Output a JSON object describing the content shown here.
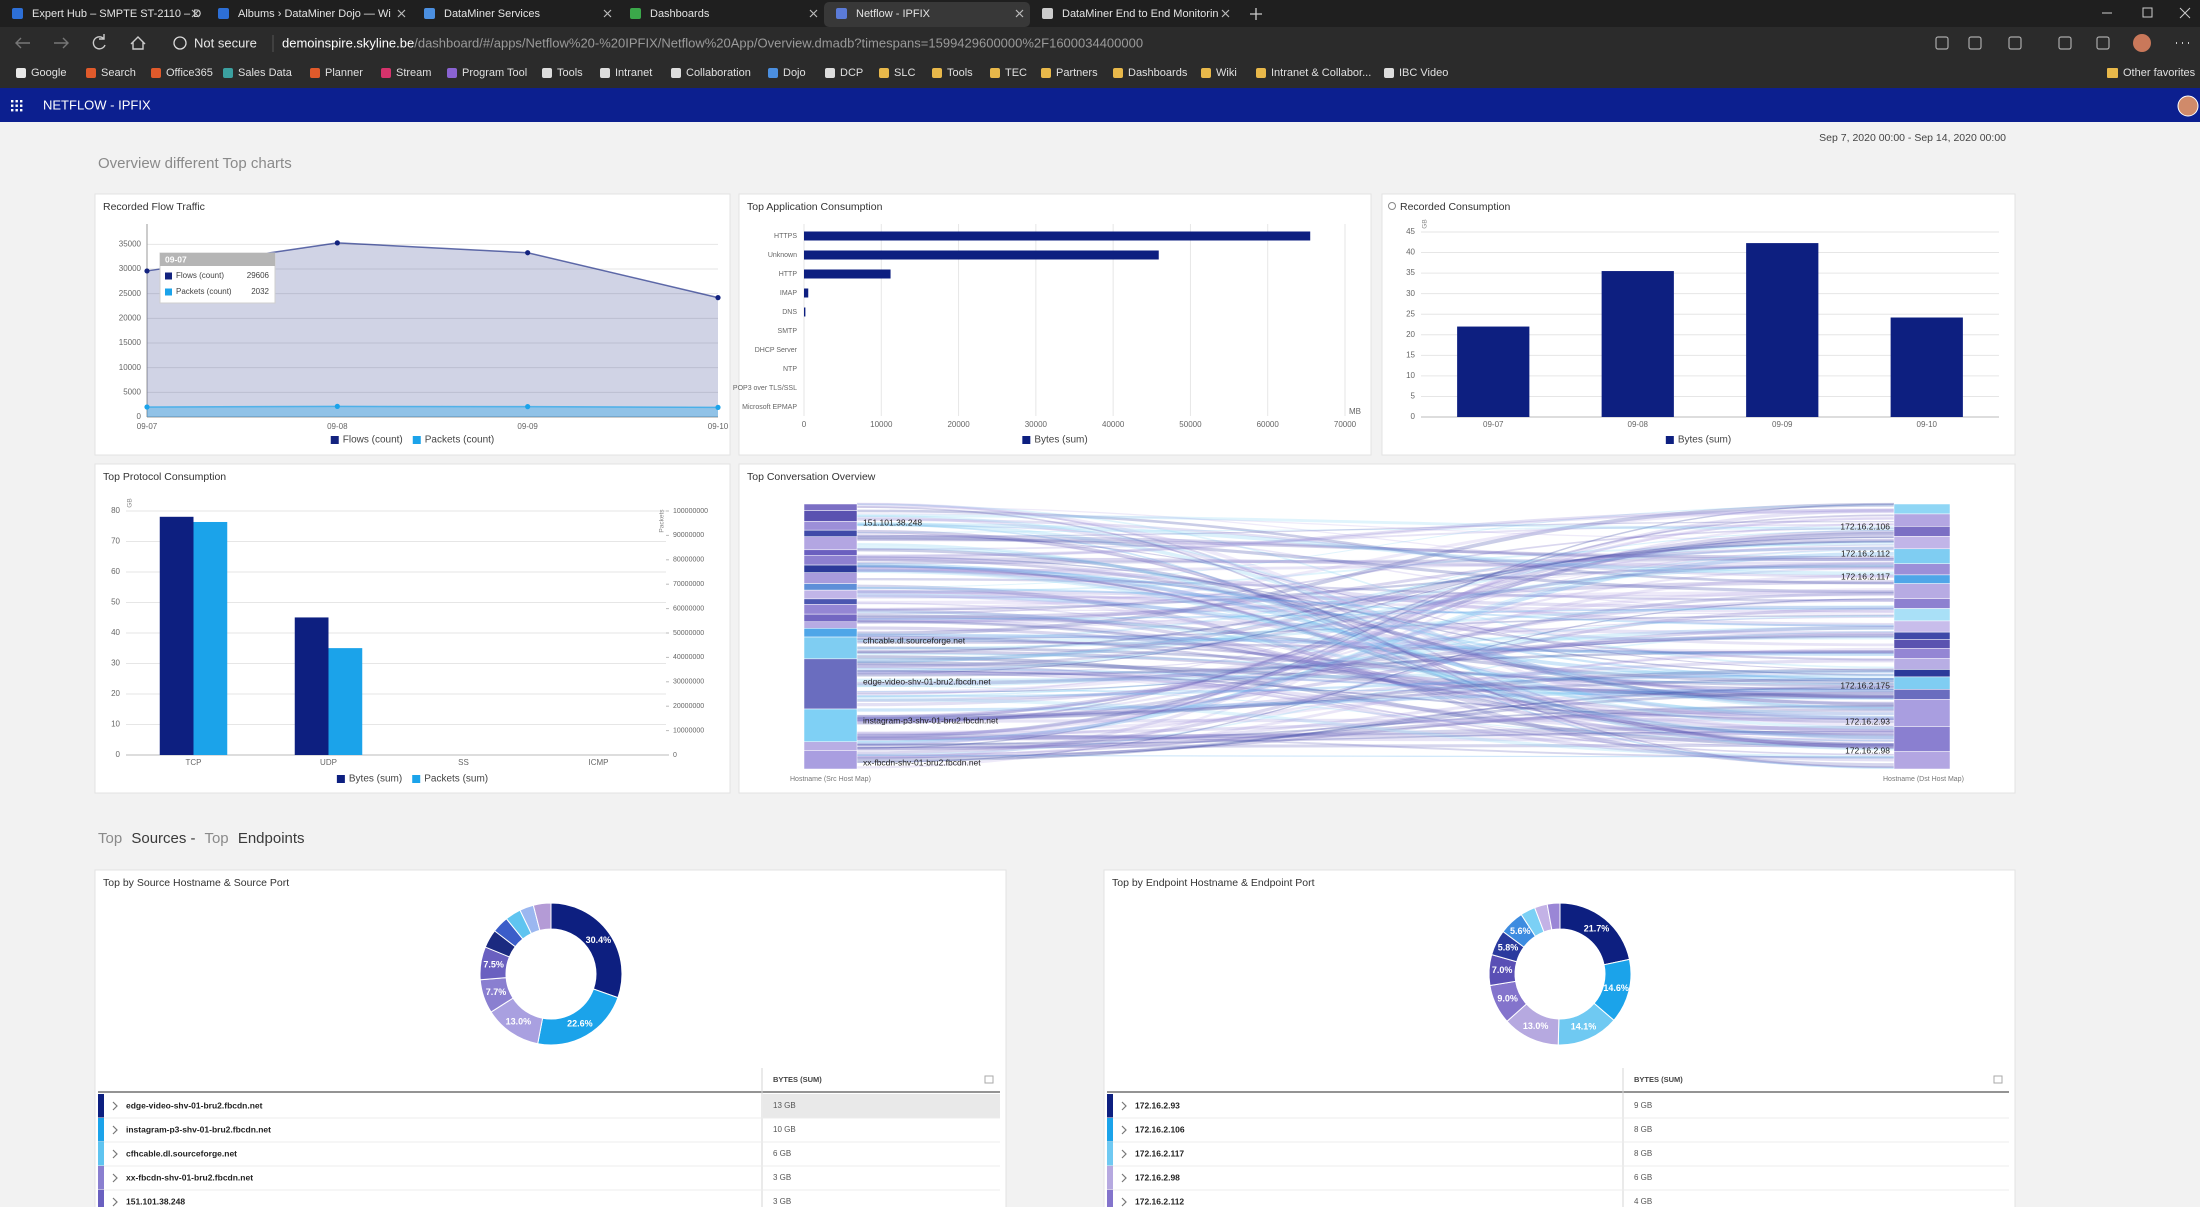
{
  "browser": {
    "tabs": [
      "Expert Hub – SMPTE ST-2110 – D",
      "Albums › DataMiner Dojo — Wi",
      "DataMiner Services",
      "Dashboards",
      "Netflow - IPFIX",
      "DataMiner End to End Monitorin"
    ],
    "active_tab": 4,
    "security": "Not secure",
    "url_host": "demoinspire.skyline.be",
    "url_path": "/dashboard/#/apps/Netflow%20-%20IPFIX/Netflow%20App/Overview.dmadb?timespans=1599429600000%2F1600034400000",
    "bookmarks": [
      "Google",
      "Search",
      "Office365",
      "Sales Data",
      "Planner",
      "Stream",
      "Program Tool",
      "Tools",
      "Intranet",
      "Collaboration",
      "Dojo",
      "DCP",
      "SLC",
      "Tools",
      "TEC",
      "Partners",
      "Dashboards",
      "Wiki",
      "Intranet & Collabor...",
      "IBC Video"
    ],
    "other_favorites": "Other favorites"
  },
  "app": {
    "title": "NETFLOW - IPFIX",
    "timespan": "Sep 7, 2020 00:00 - Sep 14, 2020 00:00",
    "section_1": "Overview different Top charts",
    "section_2": [
      "Top",
      "Sources -",
      "Top",
      "Endpoints"
    ]
  },
  "chart_data": [
    {
      "type": "area",
      "title": "Recorded Flow Traffic",
      "categories": [
        "09-07",
        "09-08",
        "09-09",
        "09-10"
      ],
      "series": [
        {
          "name": "Flows (count)",
          "color": "#13237f",
          "values": [
            29606,
            35300,
            33300,
            24200
          ]
        },
        {
          "name": "Packets (count)",
          "color": "#1ba3ea",
          "values": [
            2032,
            2150,
            2100,
            1950
          ]
        }
      ],
      "ylim": [
        0,
        37500
      ],
      "yticks": [
        0,
        5000,
        10000,
        15000,
        20000,
        25000,
        30000,
        35000
      ],
      "grid": true
    },
    {
      "type": "hbar",
      "title": "Top Application Consumption",
      "categories": [
        "HTTPS",
        "Unknown",
        "HTTP",
        "IMAP",
        "DNS",
        "SMTP",
        "DHCP Server",
        "NTP",
        "POP3 over TLS/SSL",
        "Microsoft EPMAP"
      ],
      "series": [
        {
          "name": "Bytes (sum)",
          "color": "#0d1f80",
          "values": [
            65500,
            45900,
            11200,
            550,
            180,
            0,
            0,
            0,
            0,
            0
          ]
        }
      ],
      "xlim": [
        0,
        70000
      ],
      "xticks": [
        0,
        10000,
        20000,
        30000,
        40000,
        50000,
        60000,
        70000
      ],
      "xlabel": "MB",
      "grid": true
    },
    {
      "type": "bar",
      "title": "Recorded Consumption",
      "categories": [
        "09-07",
        "09-08",
        "09-09",
        "09-10"
      ],
      "series": [
        {
          "name": "Bytes (sum)",
          "color": "#0d1f80",
          "values": [
            22,
            35.5,
            42.3,
            24.2
          ]
        }
      ],
      "ylim": [
        0,
        45
      ],
      "yticks": [
        0,
        5,
        10,
        15,
        20,
        25,
        30,
        35,
        40,
        45
      ],
      "ylabel": "GB",
      "grid": true
    },
    {
      "type": "bar",
      "title": "Top Protocol Consumption",
      "categories": [
        "TCP",
        "UDP",
        "SS",
        "ICMP"
      ],
      "series": [
        {
          "name": "Bytes (sum)",
          "color": "#0d1f80",
          "values": [
            78.1,
            45.1,
            0,
            0
          ]
        },
        {
          "name": "Packets (sum)",
          "color": "#1ba3ea",
          "axis": "y2",
          "values": [
            95500000,
            43800000,
            0,
            0
          ]
        }
      ],
      "ylim": [
        0,
        80
      ],
      "yticks": [
        0,
        10,
        20,
        30,
        40,
        50,
        60,
        70,
        80
      ],
      "ylabel": "GB",
      "y2lim": [
        0,
        100000000
      ],
      "y2ticks": [
        0,
        10000000,
        20000000,
        30000000,
        40000000,
        50000000,
        60000000,
        70000000,
        80000000,
        90000000,
        100000000
      ],
      "y2label": "Packets",
      "grid": true
    },
    {
      "type": "sankey",
      "title": "Top Conversation Overview",
      "sources": [
        "151.101.38.248",
        "cfhcable.dl.sourceforge.net",
        "edge-video-shv-01-bru2.fbcdn.net",
        "instagram-p3-shv-01-bru2.fbcdn.net",
        "xx-fbcdn-shv-01-bru2.fbcdn.net"
      ],
      "targets": [
        "172.16.2.106",
        "172.16.2.112",
        "172.16.2.117",
        "172.16.2.175",
        "172.16.2.93",
        "172.16.2.98"
      ],
      "source_label": "Hostname (Src Host Map)",
      "target_label": "Hostname (Dst Host Map)"
    },
    {
      "type": "donut",
      "title": "Top by Source Hostname & Source Port",
      "values": [
        30.4,
        22.6,
        13.0,
        7.7,
        7.5,
        4.2,
        3.8,
        3.6,
        3.2,
        4.0
      ],
      "value_labels": [
        "30.4%",
        "22.6%",
        "13.0%",
        "7.7%",
        "7.5%",
        null,
        null,
        null,
        null,
        null
      ],
      "colors": [
        "#0d1f80",
        "#1ba3ea",
        "#a9a0e0",
        "#8a7fd0",
        "#6a60c0",
        "#1b2a80",
        "#3b5dc9",
        "#5fc4f0",
        "#9bb7f0",
        "#b49bd6"
      ],
      "table": {
        "header": "BYTES (SUM)",
        "rows": [
          {
            "name": "edge-video-shv-01-bru2.fbcdn.net",
            "value": "13 GB",
            "color": "#0d1f80"
          },
          {
            "name": "instagram-p3-shv-01-bru2.fbcdn.net",
            "value": "10 GB",
            "color": "#1ba3ea"
          },
          {
            "name": "cfhcable.dl.sourceforge.net",
            "value": "6 GB",
            "color": "#5fc4f0"
          },
          {
            "name": "xx-fbcdn-shv-01-bru2.fbcdn.net",
            "value": "3 GB",
            "color": "#8a7fd0"
          },
          {
            "name": "151.101.38.248",
            "value": "3 GB",
            "color": "#6a60c0"
          }
        ]
      }
    },
    {
      "type": "donut",
      "title": "Top by Endpoint Hostname & Endpoint Port",
      "values": [
        21.7,
        14.6,
        14.1,
        13.0,
        9.0,
        7.0,
        5.8,
        5.6,
        3.4,
        2.9,
        2.9
      ],
      "value_labels": [
        "21.7%",
        "14.6%",
        "14.1%",
        "13.0%",
        "9.0%",
        "7.0%",
        "5.8%",
        "5.6%",
        null,
        null,
        null
      ],
      "colors": [
        "#0d1f80",
        "#1ba3ea",
        "#6fc9f2",
        "#b6a9e0",
        "#8474cc",
        "#5a4fb5",
        "#2a3a9e",
        "#3d8ce0",
        "#7bd0f5",
        "#c3b2e6",
        "#9a86d6"
      ],
      "table": {
        "header": "BYTES (SUM)",
        "rows": [
          {
            "name": "172.16.2.93",
            "value": "9 GB",
            "color": "#0d1f80"
          },
          {
            "name": "172.16.2.106",
            "value": "8 GB",
            "color": "#1ba3ea"
          },
          {
            "name": "172.16.2.117",
            "value": "8 GB",
            "color": "#6fc9f2"
          },
          {
            "name": "172.16.2.98",
            "value": "6 GB",
            "color": "#b6a9e0"
          },
          {
            "name": "172.16.2.112",
            "value": "4 GB",
            "color": "#8474cc"
          }
        ]
      }
    }
  ]
}
